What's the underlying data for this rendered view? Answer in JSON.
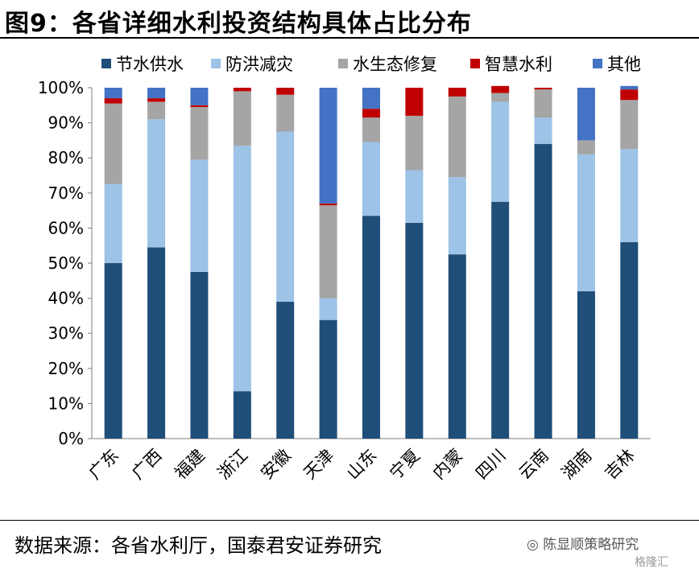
{
  "header": {
    "title": "图9：各省详细水利投资结构具体占比分布"
  },
  "footer": {
    "source": "数据来源：各省水利厅，国泰君安证券研究",
    "watermark": "陈显顺策略研究",
    "watermark2": "格隆汇"
  },
  "icons": {
    "watermark": "wechat-icon"
  },
  "chart_data": {
    "type": "bar",
    "stacked": true,
    "categories": [
      "广东",
      "广西",
      "福建",
      "浙江",
      "安徽",
      "天津",
      "山东",
      "宁夏",
      "内蒙",
      "四川",
      "云南",
      "湖南",
      "吉林"
    ],
    "y_ticks": [
      "0%",
      "10%",
      "20%",
      "30%",
      "40%",
      "50%",
      "60%",
      "70%",
      "80%",
      "90%",
      "100%"
    ],
    "ylim": [
      0,
      100
    ],
    "legend_position": "top",
    "series": [
      {
        "name": "节水供水",
        "color": "#1f4e79",
        "values": [
          50,
          54.5,
          47.5,
          13.5,
          39,
          33.8,
          63.5,
          61.5,
          52.5,
          67.5,
          84,
          42,
          56
        ]
      },
      {
        "name": "防洪减灾",
        "color": "#9dc3e6",
        "values": [
          22.5,
          36.5,
          32,
          70,
          48.5,
          6.2,
          21,
          15,
          22,
          28.5,
          7.5,
          39,
          26.5
        ]
      },
      {
        "name": "水生态修复",
        "color": "#a5a5a5",
        "values": [
          23,
          5,
          15,
          15.5,
          10.5,
          26.5,
          7,
          15.5,
          23,
          2.5,
          8,
          4,
          14
        ]
      },
      {
        "name": "智慧水利",
        "color": "#c00000",
        "values": [
          1.5,
          1,
          0.5,
          1,
          2,
          0.5,
          2.5,
          8,
          2.5,
          2,
          0.5,
          0,
          3
        ]
      },
      {
        "name": "其他",
        "color": "#4472c4",
        "values": [
          3,
          3,
          5,
          0,
          0,
          33,
          6,
          0,
          0,
          0,
          0,
          15,
          1
        ]
      }
    ]
  }
}
